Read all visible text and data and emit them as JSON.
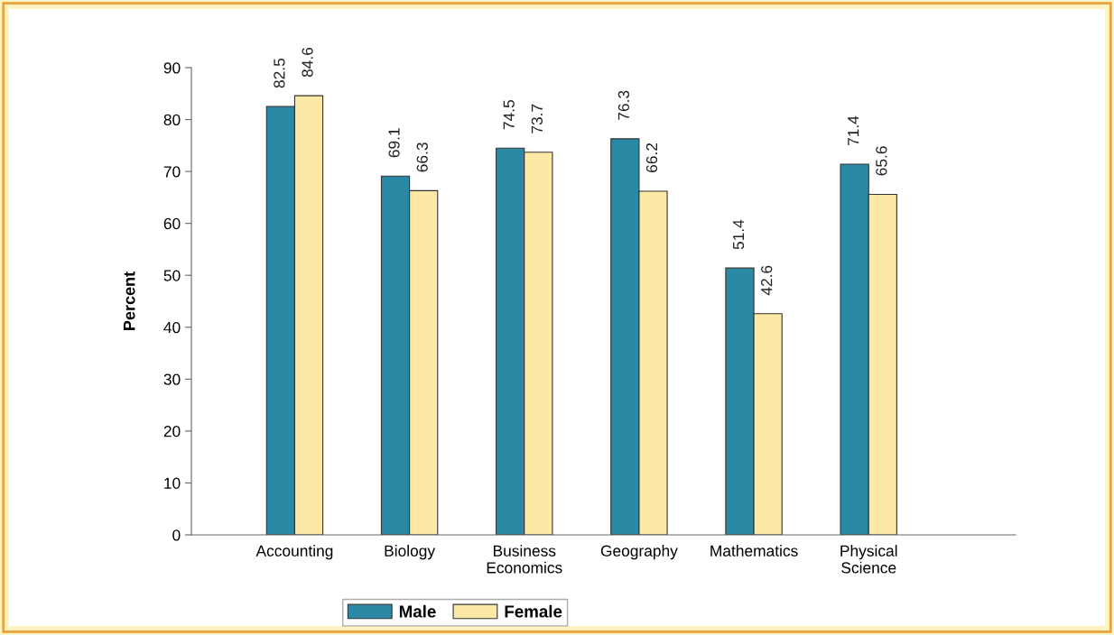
{
  "chart_data": {
    "type": "bar",
    "ylabel": "Percent",
    "categories": [
      "Accounting",
      "Biology",
      "Business\nEconomics",
      "Geography",
      "Mathematics",
      "Physical\nScience"
    ],
    "series": [
      {
        "name": "Male",
        "color": "#2a8aa6",
        "values": [
          82.5,
          69.1,
          74.5,
          76.3,
          51.4,
          71.4
        ]
      },
      {
        "name": "Female",
        "color": "#fde9a6",
        "values": [
          84.6,
          66.3,
          73.7,
          66.2,
          42.6,
          65.6
        ]
      }
    ],
    "ylim": [
      0,
      90
    ],
    "yticks": [
      0,
      10,
      20,
      30,
      40,
      50,
      60,
      70,
      80,
      90
    ],
    "data_labels": true,
    "grid": false,
    "legend": "bottom"
  }
}
